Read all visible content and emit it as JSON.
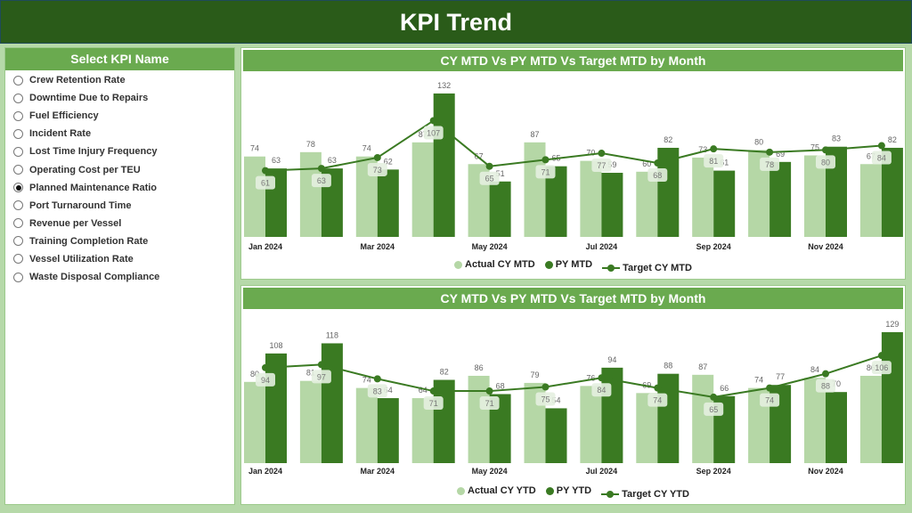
{
  "header": {
    "title": "KPI Trend"
  },
  "sidebar": {
    "title": "Select KPI Name",
    "items": [
      {
        "label": "Crew Retention Rate",
        "selected": false
      },
      {
        "label": "Downtime Due to Repairs",
        "selected": false
      },
      {
        "label": "Fuel Efficiency",
        "selected": false
      },
      {
        "label": "Incident Rate",
        "selected": false
      },
      {
        "label": "Lost Time Injury Frequency",
        "selected": false
      },
      {
        "label": "Operating Cost per TEU",
        "selected": false
      },
      {
        "label": "Planned Maintenance Ratio",
        "selected": true
      },
      {
        "label": "Port Turnaround Time",
        "selected": false
      },
      {
        "label": "Revenue per Vessel",
        "selected": false
      },
      {
        "label": "Training Completion Rate",
        "selected": false
      },
      {
        "label": "Vessel Utilization Rate",
        "selected": false
      },
      {
        "label": "Waste Disposal Compliance",
        "selected": false
      }
    ]
  },
  "colors": {
    "actual": "#b5d7a6",
    "py": "#3a7a22",
    "target": "#3a7a22",
    "header": "#2a5b19",
    "accent": "#6aaa4f"
  },
  "chart_data": [
    {
      "type": "bar",
      "title": "CY MTD Vs PY MTD Vs Target MTD by Month",
      "categories": [
        "Jan 2024",
        "Feb 2024",
        "Mar 2024",
        "Apr 2024",
        "May 2024",
        "Jun 2024",
        "Jul 2024",
        "Aug 2024",
        "Sep 2024",
        "Oct 2024",
        "Nov 2024",
        "Dec 2024"
      ],
      "tick_labels": [
        "Jan 2024",
        "",
        "Mar 2024",
        "",
        "May 2024",
        "",
        "Jul 2024",
        "",
        "Sep 2024",
        "",
        "Nov 2024",
        ""
      ],
      "legend": [
        "Actual CY MTD",
        "PY MTD",
        "Target CY MTD"
      ],
      "legend_position": "bottom",
      "series": [
        {
          "name": "Actual CY MTD",
          "kind": "bar",
          "values": [
            74,
            78,
            74,
            87,
            67,
            87,
            70,
            60,
            73,
            80,
            75,
            67
          ]
        },
        {
          "name": "PY MTD",
          "kind": "bar",
          "values": [
            63,
            63,
            62,
            132,
            51,
            65,
            59,
            82,
            61,
            69,
            83,
            82
          ]
        },
        {
          "name": "Target CY MTD",
          "kind": "line",
          "values": [
            61,
            63,
            73,
            107,
            65,
            71,
            77,
            68,
            81,
            78,
            80,
            84
          ]
        }
      ],
      "grid": false
    },
    {
      "type": "bar",
      "title": "CY MTD Vs PY MTD Vs Target MTD by Month",
      "categories": [
        "Jan 2024",
        "Feb 2024",
        "Mar 2024",
        "Apr 2024",
        "May 2024",
        "Jun 2024",
        "Jul 2024",
        "Aug 2024",
        "Sep 2024",
        "Oct 2024",
        "Nov 2024",
        "Dec 2024"
      ],
      "tick_labels": [
        "Jan 2024",
        "",
        "Mar 2024",
        "",
        "May 2024",
        "",
        "Jul 2024",
        "",
        "Sep 2024",
        "",
        "Nov 2024",
        ""
      ],
      "legend": [
        "Actual CY YTD",
        "PY YTD",
        "Target CY YTD"
      ],
      "legend_position": "bottom",
      "series": [
        {
          "name": "Actual CY YTD",
          "kind": "bar",
          "values": [
            80,
            81,
            74,
            64,
            86,
            79,
            76,
            69,
            87,
            74,
            84,
            86
          ]
        },
        {
          "name": "PY YTD",
          "kind": "bar",
          "values": [
            108,
            118,
            64,
            82,
            68,
            54,
            94,
            88,
            66,
            77,
            70,
            129
          ]
        },
        {
          "name": "Target CY YTD",
          "kind": "line",
          "values": [
            94,
            97,
            83,
            71,
            71,
            75,
            84,
            74,
            65,
            74,
            88,
            106
          ]
        }
      ],
      "grid": false
    }
  ]
}
